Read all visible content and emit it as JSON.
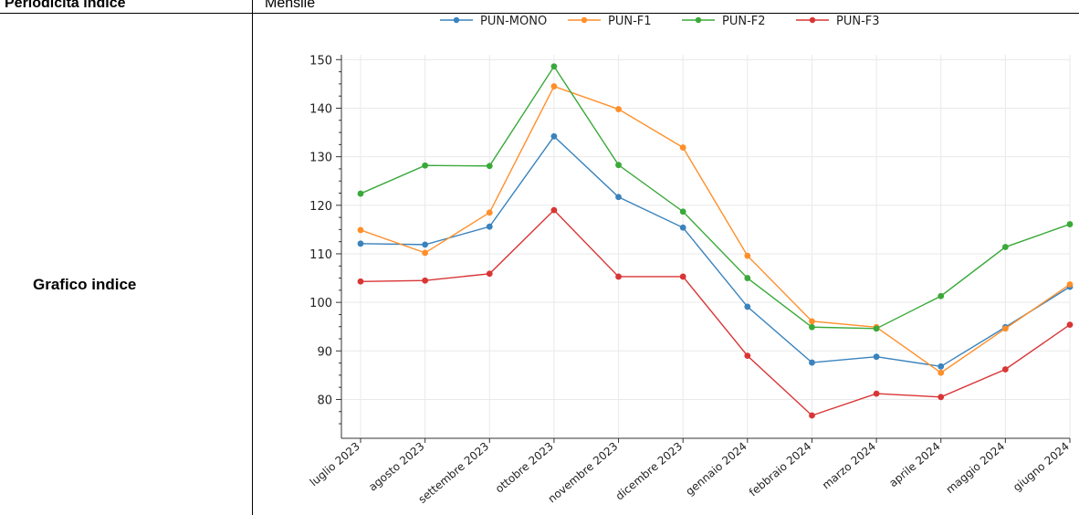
{
  "table": {
    "rows": [
      {
        "label": "Periodicità indice",
        "value": "Mensile"
      },
      {
        "label": "Grafico indice"
      }
    ]
  },
  "chart_data": {
    "type": "line",
    "title": "",
    "xlabel": "",
    "ylabel": "",
    "categories": [
      "luglio 2023",
      "agosto 2023",
      "settembre 2023",
      "ottobre 2023",
      "novembre 2023",
      "dicembre 2023",
      "gennaio 2024",
      "febbraio 2024",
      "marzo 2024",
      "aprile 2024",
      "maggio 2024",
      "giugno 2024"
    ],
    "ylim": [
      72,
      151
    ],
    "yticks": [
      80,
      90,
      100,
      110,
      120,
      130,
      140,
      150
    ],
    "grid": true,
    "legend_position": "top",
    "series": [
      {
        "name": "PUN-MONO",
        "color": "#3a83bd",
        "values": [
          112.1,
          111.9,
          115.6,
          134.2,
          121.7,
          115.4,
          99.1,
          87.6,
          88.8,
          86.8,
          94.9,
          103.2
        ]
      },
      {
        "name": "PUN-F1",
        "color": "#ff8f2a",
        "values": [
          114.9,
          110.2,
          118.5,
          144.5,
          139.8,
          131.9,
          109.6,
          96.1,
          94.9,
          85.5,
          94.6,
          103.7
        ]
      },
      {
        "name": "PUN-F2",
        "color": "#3aa93a",
        "values": [
          122.4,
          128.2,
          128.1,
          148.6,
          128.3,
          118.7,
          105.0,
          94.9,
          94.6,
          101.3,
          111.4,
          116.1
        ]
      },
      {
        "name": "PUN-F3",
        "color": "#d93535",
        "values": [
          104.3,
          104.5,
          105.9,
          119.0,
          105.3,
          105.3,
          89.0,
          76.7,
          81.2,
          80.5,
          86.2,
          95.4
        ]
      }
    ]
  }
}
